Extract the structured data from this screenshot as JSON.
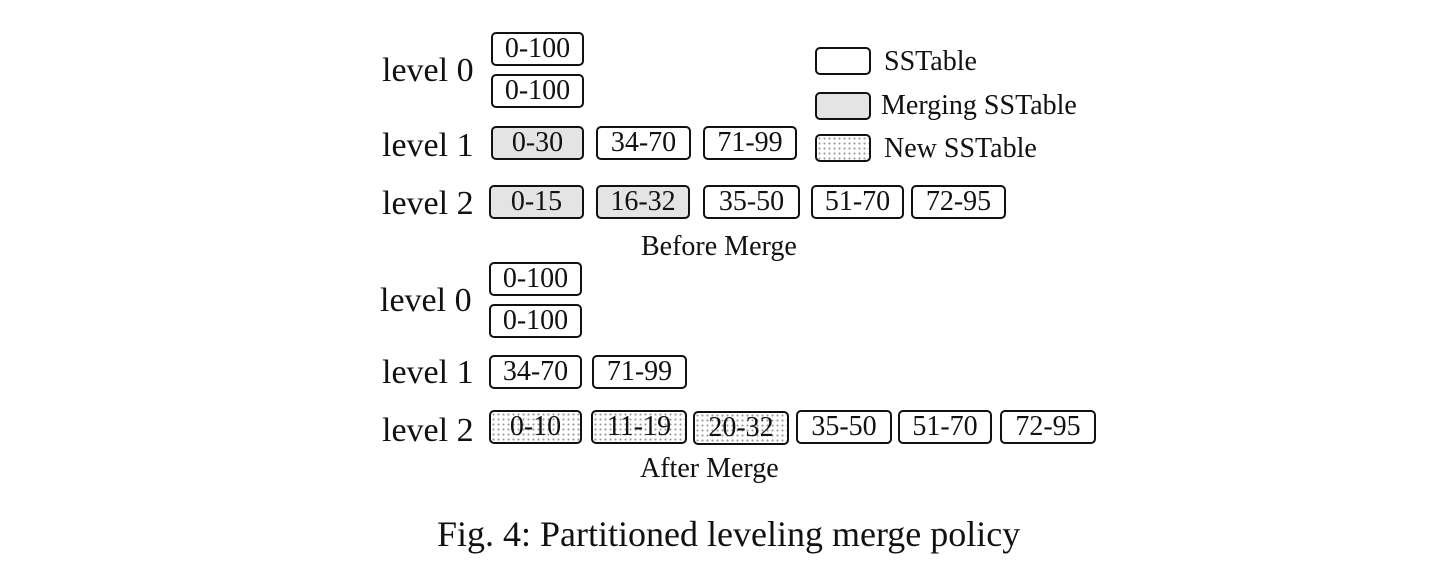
{
  "before": {
    "rows": [
      {
        "label": "level 0",
        "boxes": [
          {
            "text": "0-100",
            "kind": "normal"
          },
          {
            "text": "0-100",
            "kind": "normal"
          }
        ]
      },
      {
        "label": "level 1",
        "boxes": [
          {
            "text": "0-30",
            "kind": "merging"
          },
          {
            "text": "34-70",
            "kind": "normal"
          },
          {
            "text": "71-99",
            "kind": "normal"
          }
        ]
      },
      {
        "label": "level 2",
        "boxes": [
          {
            "text": "0-15",
            "kind": "merging"
          },
          {
            "text": "16-32",
            "kind": "merging"
          },
          {
            "text": "35-50",
            "kind": "normal"
          },
          {
            "text": "51-70",
            "kind": "normal"
          },
          {
            "text": "72-95",
            "kind": "normal"
          }
        ]
      }
    ],
    "caption": "Before Merge"
  },
  "after": {
    "rows": [
      {
        "label": "level 0",
        "boxes": [
          {
            "text": "0-100",
            "kind": "normal"
          },
          {
            "text": "0-100",
            "kind": "normal"
          }
        ]
      },
      {
        "label": "level 1",
        "boxes": [
          {
            "text": "34-70",
            "kind": "normal"
          },
          {
            "text": "71-99",
            "kind": "normal"
          }
        ]
      },
      {
        "label": "level 2",
        "boxes": [
          {
            "text": "0-10",
            "kind": "new"
          },
          {
            "text": "11-19",
            "kind": "new"
          },
          {
            "text": "20-32",
            "kind": "new"
          },
          {
            "text": "35-50",
            "kind": "normal"
          },
          {
            "text": "51-70",
            "kind": "normal"
          },
          {
            "text": "72-95",
            "kind": "normal"
          }
        ]
      }
    ],
    "caption": "After Merge"
  },
  "legend": [
    {
      "label": "SSTable",
      "kind": "normal"
    },
    {
      "label": "Merging SSTable",
      "kind": "merging"
    },
    {
      "label": "New SSTable",
      "kind": "new"
    }
  ],
  "figure_caption": "Fig. 4: Partitioned leveling merge policy"
}
